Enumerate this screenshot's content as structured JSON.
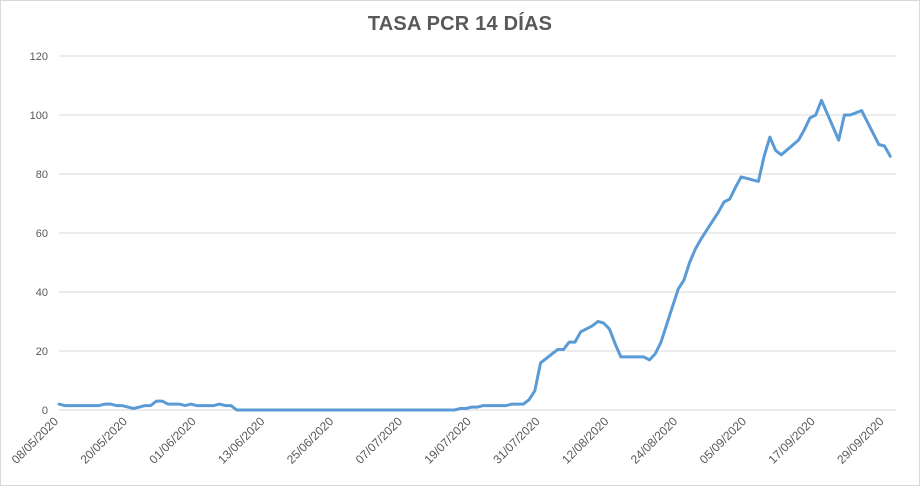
{
  "chart_data": {
    "type": "line",
    "title": "TASA PCR 14 DÍAS",
    "xlabel": "",
    "ylabel": "",
    "ylim": [
      0,
      120
    ],
    "yticks": [
      0,
      20,
      40,
      60,
      80,
      100,
      120
    ],
    "xlim": [
      "08/05/2020",
      "01/10/2020"
    ],
    "xtick_labels": [
      "08/05/2020",
      "20/05/2020",
      "01/06/2020",
      "13/06/2020",
      "25/06/2020",
      "07/07/2020",
      "19/07/2020",
      "31/07/2020",
      "12/08/2020",
      "24/08/2020",
      "05/09/2020",
      "17/09/2020",
      "29/09/2020"
    ],
    "grid": "horizontal",
    "legend": "none",
    "line_color": "#5b9bd5",
    "series": [
      {
        "points": [
          [
            "08/05/2020",
            2
          ],
          [
            "09/05/2020",
            1.5
          ],
          [
            "10/05/2020",
            1.5
          ],
          [
            "11/05/2020",
            1.5
          ],
          [
            "12/05/2020",
            1.5
          ],
          [
            "13/05/2020",
            1.5
          ],
          [
            "14/05/2020",
            1.5
          ],
          [
            "15/05/2020",
            1.5
          ],
          [
            "16/05/2020",
            2
          ],
          [
            "17/05/2020",
            2
          ],
          [
            "18/05/2020",
            1.5
          ],
          [
            "19/05/2020",
            1.5
          ],
          [
            "20/05/2020",
            1
          ],
          [
            "21/05/2020",
            0.5
          ],
          [
            "22/05/2020",
            1
          ],
          [
            "23/05/2020",
            1.5
          ],
          [
            "24/05/2020",
            1.5
          ],
          [
            "25/05/2020",
            3
          ],
          [
            "26/05/2020",
            3
          ],
          [
            "27/05/2020",
            2
          ],
          [
            "28/05/2020",
            2
          ],
          [
            "29/05/2020",
            2
          ],
          [
            "30/05/2020",
            1.5
          ],
          [
            "31/05/2020",
            2
          ],
          [
            "01/06/2020",
            1.5
          ],
          [
            "02/06/2020",
            1.5
          ],
          [
            "03/06/2020",
            1.5
          ],
          [
            "04/06/2020",
            1.5
          ],
          [
            "05/06/2020",
            2
          ],
          [
            "06/06/2020",
            1.5
          ],
          [
            "07/06/2020",
            1.5
          ],
          [
            "08/06/2020",
            0
          ],
          [
            "09/06/2020",
            0
          ],
          [
            "16/07/2020",
            0
          ],
          [
            "17/07/2020",
            0.5
          ],
          [
            "18/07/2020",
            0.5
          ],
          [
            "19/07/2020",
            1
          ],
          [
            "20/07/2020",
            1
          ],
          [
            "21/07/2020",
            1.5
          ],
          [
            "22/07/2020",
            1.5
          ],
          [
            "23/07/2020",
            1.5
          ],
          [
            "24/07/2020",
            1.5
          ],
          [
            "25/07/2020",
            1.5
          ],
          [
            "26/07/2020",
            2
          ],
          [
            "27/07/2020",
            2
          ],
          [
            "28/07/2020",
            2
          ],
          [
            "29/07/2020",
            3.5
          ],
          [
            "30/07/2020",
            6.5
          ],
          [
            "31/07/2020",
            16
          ],
          [
            "01/08/2020",
            17.5
          ],
          [
            "02/08/2020",
            19
          ],
          [
            "03/08/2020",
            20.5
          ],
          [
            "04/08/2020",
            20.5
          ],
          [
            "05/08/2020",
            23
          ],
          [
            "06/08/2020",
            23
          ],
          [
            "07/08/2020",
            26.5
          ],
          [
            "08/08/2020",
            27.5
          ],
          [
            "09/08/2020",
            28.5
          ],
          [
            "10/08/2020",
            30
          ],
          [
            "11/08/2020",
            29.5
          ],
          [
            "12/08/2020",
            27.5
          ],
          [
            "13/08/2020",
            22.5
          ],
          [
            "14/08/2020",
            18
          ],
          [
            "15/08/2020",
            18
          ],
          [
            "16/08/2020",
            18
          ],
          [
            "17/08/2020",
            18
          ],
          [
            "18/08/2020",
            18
          ],
          [
            "19/08/2020",
            17
          ],
          [
            "20/08/2020",
            19
          ],
          [
            "21/08/2020",
            23
          ],
          [
            "22/08/2020",
            29
          ],
          [
            "23/08/2020",
            35
          ],
          [
            "24/08/2020",
            41
          ],
          [
            "25/08/2020",
            44
          ],
          [
            "26/08/2020",
            50
          ],
          [
            "27/08/2020",
            54.5
          ],
          [
            "28/08/2020",
            58
          ],
          [
            "29/08/2020",
            61
          ],
          [
            "30/08/2020",
            64
          ],
          [
            "31/08/2020",
            67
          ],
          [
            "01/09/2020",
            70.5
          ],
          [
            "02/09/2020",
            71.5
          ],
          [
            "03/09/2020",
            75.5
          ],
          [
            "04/09/2020",
            79
          ],
          [
            "07/09/2020",
            77.5
          ],
          [
            "08/09/2020",
            86
          ],
          [
            "09/09/2020",
            92.5
          ],
          [
            "10/09/2020",
            88
          ],
          [
            "11/09/2020",
            86.5
          ],
          [
            "14/09/2020",
            91.5
          ],
          [
            "15/09/2020",
            95
          ],
          [
            "16/09/2020",
            99
          ],
          [
            "17/09/2020",
            100
          ],
          [
            "18/09/2020",
            105
          ],
          [
            "21/09/2020",
            91.5
          ],
          [
            "22/09/2020",
            100
          ],
          [
            "23/09/2020",
            100
          ],
          [
            "25/09/2020",
            101.5
          ],
          [
            "28/09/2020",
            90
          ],
          [
            "29/09/2020",
            89.5
          ],
          [
            "30/09/2020",
            86
          ]
        ]
      }
    ]
  }
}
